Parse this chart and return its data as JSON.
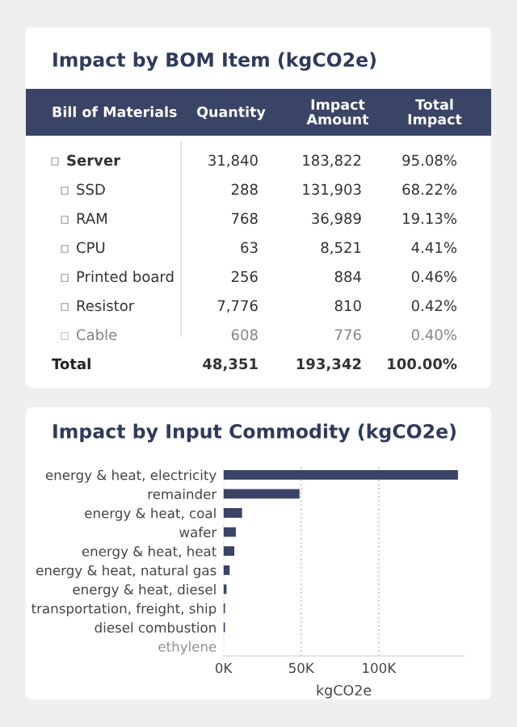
{
  "chart_data": [
    {
      "type": "other",
      "title": "Impact by BOM Item (kgCO2e)",
      "annotations": [
        "Bill of Materials",
        "Quantity",
        "Impact\nAmount",
        "Total\nImpact",
        "Server",
        "31,840",
        "183,822",
        "95.08%",
        "SSD",
        "288",
        "131,903",
        "68.22%",
        "RAM",
        "768",
        "36,989",
        "19.13%",
        "CPU",
        "63",
        "8,521",
        "4.41%",
        "Printed board",
        "256",
        "884",
        "0.46%",
        "Resistor",
        "7,776",
        "810",
        "0.42%",
        "Cable",
        "608",
        "776",
        "0.40%",
        "Total",
        "48,351",
        "193,342",
        "100.00%"
      ]
    },
    {
      "type": "bar",
      "orientation": "horizontal",
      "title": "Impact by Input Commodity (kgCO2e)",
      "xlabel": "kgCO2e",
      "categories": [
        "energy & heat, electricity",
        "remainder",
        "energy & heat, coal",
        "wafer",
        "energy & heat, heat",
        "energy & heat, natural gas",
        "energy & heat, diesel",
        "transportation, freight, ship",
        "diesel combustion",
        "ethylene"
      ],
      "values": [
        151000,
        49000,
        12000,
        8000,
        7000,
        4000,
        2000,
        1000,
        1000,
        0
      ],
      "color": "#3b4366",
      "xlim": [
        0,
        155000
      ],
      "xticks": [
        {
          "value": 0,
          "label": "0K"
        },
        {
          "value": 50000,
          "label": "50K"
        },
        {
          "value": 100000,
          "label": "100K"
        }
      ],
      "grid": "x"
    }
  ]
}
